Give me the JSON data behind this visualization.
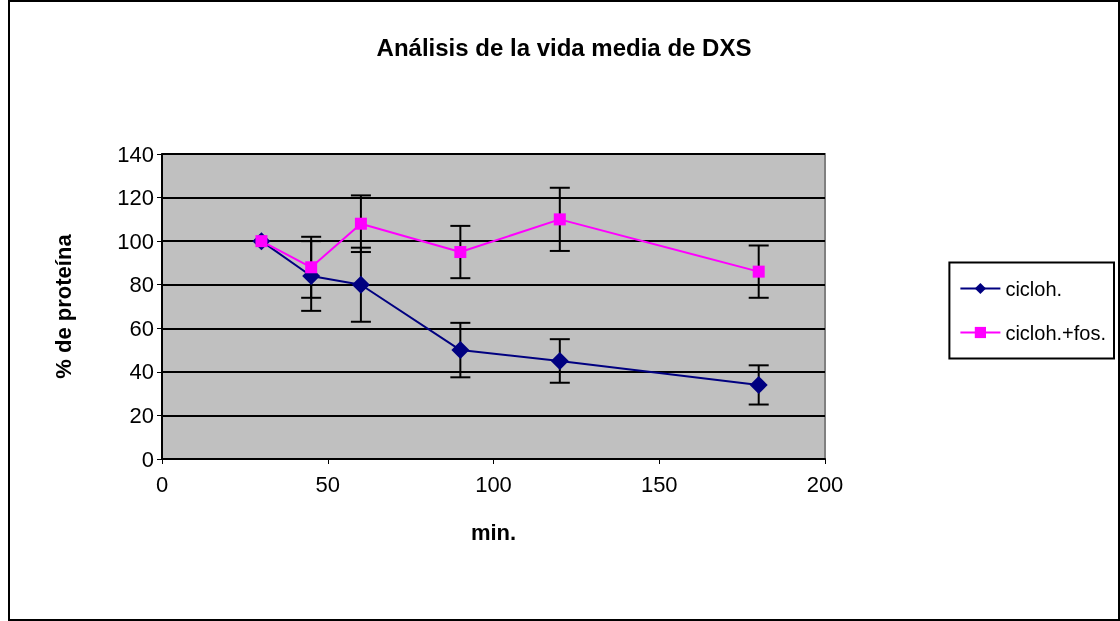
{
  "chart_data": {
    "type": "line",
    "title": "Análisis de la vida media de DXS",
    "xlabel": "min.",
    "ylabel": "% de proteína",
    "x": [
      30,
      45,
      60,
      90,
      120,
      180
    ],
    "series": [
      {
        "name": "cicloh.",
        "color": "#000080",
        "marker": "diamond",
        "values": [
          100,
          84,
          80,
          50,
          45,
          34
        ],
        "errors": [
          null,
          16,
          17,
          12.5,
          10,
          9
        ]
      },
      {
        "name": "cicloh.+fos.",
        "color": "#ff00ff",
        "marker": "square",
        "values": [
          100,
          88,
          108,
          95,
          110,
          86
        ],
        "errors": [
          null,
          14,
          13,
          12,
          14.5,
          12
        ]
      }
    ],
    "xlim": [
      0,
      200
    ],
    "xticks": [
      0,
      50,
      100,
      150,
      200
    ],
    "ylim": [
      0,
      140
    ],
    "yticks": [
      0,
      20,
      40,
      60,
      80,
      100,
      120,
      140
    ],
    "grid": "y",
    "legend": "right",
    "line_style": "solid"
  }
}
